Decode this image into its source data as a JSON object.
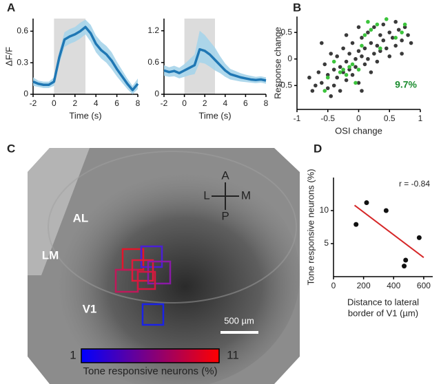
{
  "panel_labels": [
    "A",
    "B",
    "C",
    "D"
  ],
  "chart_data": [
    {
      "type": "line",
      "ylabel": "ΔF/F",
      "xlabel": "Time (s)",
      "x": [
        -2,
        -1.5,
        -1,
        -0.5,
        0,
        0.5,
        1,
        1.5,
        2,
        2.5,
        3,
        3.5,
        4,
        4.5,
        5,
        5.5,
        6,
        6.5,
        7,
        7.5,
        8
      ],
      "series": [
        {
          "color": "#1f77b4",
          "band_color": "#a6d4ea",
          "values": [
            0.12,
            0.1,
            0.09,
            0.09,
            0.12,
            0.35,
            0.52,
            0.55,
            0.57,
            0.6,
            0.64,
            0.58,
            0.48,
            0.42,
            0.38,
            0.32,
            0.24,
            0.17,
            0.1,
            0.04,
            0.1
          ],
          "lower": [
            0.08,
            0.07,
            0.06,
            0.06,
            0.08,
            0.29,
            0.45,
            0.48,
            0.5,
            0.53,
            0.57,
            0.5,
            0.4,
            0.34,
            0.3,
            0.24,
            0.17,
            0.11,
            0.05,
            0.0,
            0.05
          ],
          "upper": [
            0.16,
            0.13,
            0.12,
            0.12,
            0.16,
            0.41,
            0.59,
            0.62,
            0.64,
            0.68,
            0.71,
            0.66,
            0.56,
            0.5,
            0.46,
            0.4,
            0.31,
            0.23,
            0.15,
            0.08,
            0.15
          ]
        }
      ],
      "shade": [
        0,
        3
      ],
      "shade_color": "#dcdcdc",
      "xlim": [
        -2,
        8
      ],
      "xticks": [
        -2,
        0,
        2,
        4,
        6,
        8
      ],
      "ylim": [
        0,
        0.72
      ],
      "yticks": [
        0,
        0.3,
        0.6
      ]
    },
    {
      "type": "line",
      "xlabel": "Time (s)",
      "x": [
        -2,
        -1.5,
        -1,
        -0.5,
        0,
        0.5,
        1,
        1.5,
        2,
        2.5,
        3,
        3.5,
        4,
        4.5,
        5,
        5.5,
        6,
        6.5,
        7,
        7.5,
        8
      ],
      "series": [
        {
          "color": "#1f77b4",
          "band_color": "#a6d4ea",
          "values": [
            0.45,
            0.42,
            0.44,
            0.4,
            0.45,
            0.5,
            0.55,
            0.85,
            0.82,
            0.75,
            0.65,
            0.55,
            0.45,
            0.38,
            0.35,
            0.32,
            0.3,
            0.28,
            0.27,
            0.28,
            0.26
          ],
          "lower": [
            0.35,
            0.33,
            0.34,
            0.3,
            0.33,
            0.36,
            0.38,
            0.6,
            0.58,
            0.52,
            0.45,
            0.4,
            0.33,
            0.28,
            0.26,
            0.24,
            0.23,
            0.22,
            0.21,
            0.22,
            0.2
          ],
          "upper": [
            0.55,
            0.51,
            0.54,
            0.5,
            0.57,
            0.66,
            0.75,
            1.2,
            1.12,
            1.0,
            0.88,
            0.72,
            0.58,
            0.48,
            0.44,
            0.4,
            0.37,
            0.35,
            0.33,
            0.34,
            0.32
          ]
        }
      ],
      "shade": [
        0,
        3
      ],
      "shade_color": "#dcdcdc",
      "xlim": [
        -2,
        8
      ],
      "xticks": [
        -2,
        0,
        2,
        4,
        6,
        8
      ],
      "ylim": [
        0,
        1.43
      ],
      "yticks": [
        0,
        0.6,
        1.2
      ]
    },
    {
      "type": "scatter",
      "ylabel": "Response change",
      "xlabel": "OSI change",
      "series": [
        {
          "color": "#3a3a3a",
          "x": [
            -0.8,
            -0.75,
            -0.7,
            -0.65,
            -0.6,
            -0.55,
            -0.5,
            -0.5,
            -0.45,
            -0.4,
            -0.4,
            -0.35,
            -0.35,
            -0.3,
            -0.3,
            -0.25,
            -0.25,
            -0.2,
            -0.2,
            -0.15,
            -0.15,
            -0.1,
            -0.1,
            -0.05,
            -0.05,
            0,
            0,
            0.05,
            0.05,
            0.1,
            0.1,
            0.15,
            0.15,
            0.2,
            0.2,
            0.25,
            0.25,
            0.3,
            0.3,
            0.35,
            0.35,
            0.4,
            0.4,
            0.45,
            0.5,
            0.5,
            0.55,
            0.6,
            0.6,
            0.65,
            0.7,
            0.75,
            0.8,
            0.85,
            -0.6,
            -0.45,
            0.05,
            0.7,
            -0.2,
            0
          ],
          "values": [
            -0.35,
            -0.6,
            -0.5,
            -0.25,
            -0.45,
            -0.1,
            -0.55,
            -0.3,
            0.1,
            -0.2,
            -0.5,
            -0.35,
            0.05,
            -0.15,
            -0.6,
            -0.25,
            0.2,
            -0.05,
            -0.4,
            0.1,
            -0.2,
            -0.3,
            0.3,
            0,
            -0.15,
            0.15,
            -0.45,
            0.05,
            0.4,
            -0.1,
            0.2,
            0.5,
            0,
            0.3,
            -0.25,
            0.1,
            0.6,
            0.25,
            -0.05,
            0.45,
            0.15,
            0.35,
            0.65,
            0.2,
            0.5,
            0.05,
            0.4,
            0.25,
            0.7,
            0.55,
            0.35,
            0.6,
            0.45,
            0.3,
            0.3,
            -0.7,
            -0.6,
            0.1,
            0.45,
            0.6
          ]
        },
        {
          "color": "#3cc43c",
          "x": [
            -0.5,
            -0.4,
            -0.3,
            -0.25,
            -0.2,
            -0.15,
            -0.1,
            -0.05,
            0,
            0.05,
            0.1,
            0.15,
            0.2,
            0.3,
            0.35,
            0.45,
            0.6,
            0.7,
            0.75,
            -0.55
          ],
          "values": [
            -0.35,
            -0.05,
            -0.25,
            -0.2,
            -0.3,
            -0.15,
            -0.1,
            -0.45,
            -0.2,
            0.25,
            0.45,
            0.7,
            0.55,
            0.65,
            0.2,
            0.75,
            0.4,
            0.5,
            0.65,
            -0.6
          ]
        }
      ],
      "annotation": {
        "text": "9.7%",
        "color": "#1a8c2e"
      },
      "xlim": [
        -1,
        1
      ],
      "xticks": [
        -1,
        -0.5,
        0,
        0.5,
        1
      ],
      "ylim": [
        -0.95,
        0.8
      ],
      "yticks": [
        -0.5,
        0,
        0.5
      ]
    },
    {
      "type": "scatter",
      "ylabel": "Tone responsive neurons (%)",
      "xlabel": [
        "Distance to lateral",
        "border of V1 (µm)"
      ],
      "series": [
        {
          "color": "#111111",
          "x": [
            150,
            220,
            350,
            470,
            480,
            570
          ],
          "values": [
            7.9,
            11.2,
            10,
            1.6,
            2.5,
            5.9
          ]
        }
      ],
      "fit_line": {
        "color": "#d62728",
        "x": [
          140,
          600
        ],
        "values": [
          10.8,
          2.9
        ]
      },
      "annotation": {
        "text": "r = -0.84",
        "color": "#222222"
      },
      "xlim": [
        0,
        660
      ],
      "xticks": [
        0,
        200,
        400,
        600
      ],
      "ylim": [
        0,
        15
      ],
      "yticks": [
        5,
        10
      ]
    }
  ],
  "image": {
    "orientation": [
      "A",
      "L",
      "M",
      "P"
    ],
    "areas": [
      "AL",
      "LM",
      "V1"
    ],
    "scale_bar": "500 µm",
    "colorbar": {
      "min": 1,
      "max": 11,
      "colors": [
        "#0000ff",
        "#ff0000"
      ],
      "label": "Tone responsive neurons (%)"
    }
  }
}
